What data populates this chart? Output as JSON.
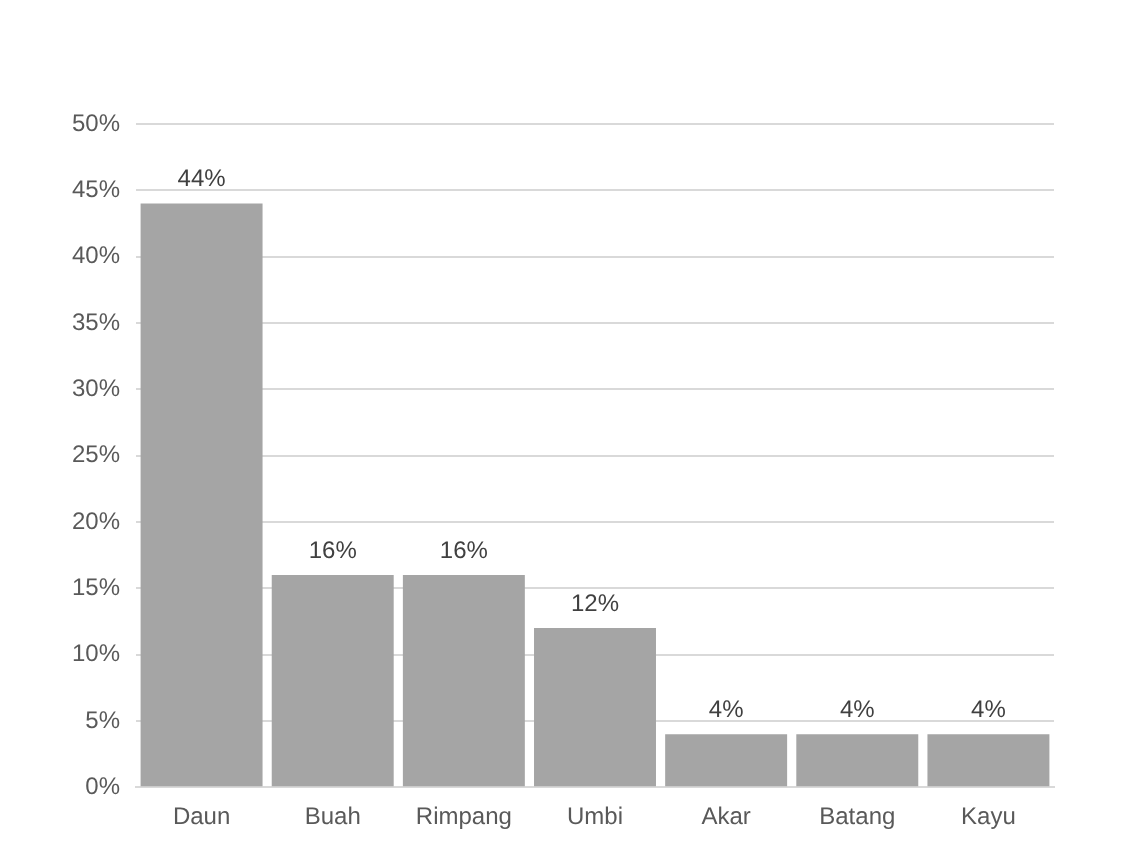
{
  "chart_data": {
    "type": "bar",
    "categories": [
      "Daun",
      "Buah",
      "Rimpang",
      "Umbi",
      "Akar",
      "Batang",
      "Kayu"
    ],
    "values": [
      44,
      16,
      16,
      12,
      4,
      4,
      4
    ],
    "value_labels": [
      "44%",
      "16%",
      "16%",
      "12%",
      "4%",
      "4%",
      "4%"
    ],
    "color": "#a5a5a5",
    "ylim": [
      0,
      50
    ],
    "yticks": [
      {
        "value": 0,
        "label": "0%"
      },
      {
        "value": 5,
        "label": "5%"
      },
      {
        "value": 10,
        "label": "10%"
      },
      {
        "value": 15,
        "label": "15%"
      },
      {
        "value": 20,
        "label": "20%"
      },
      {
        "value": 25,
        "label": "25%"
      },
      {
        "value": 30,
        "label": "30%"
      },
      {
        "value": 35,
        "label": "35%"
      },
      {
        "value": 40,
        "label": "40%"
      },
      {
        "value": 45,
        "label": "45%"
      },
      {
        "value": 50,
        "label": "50%"
      }
    ],
    "grid": "y",
    "legend": false
  }
}
